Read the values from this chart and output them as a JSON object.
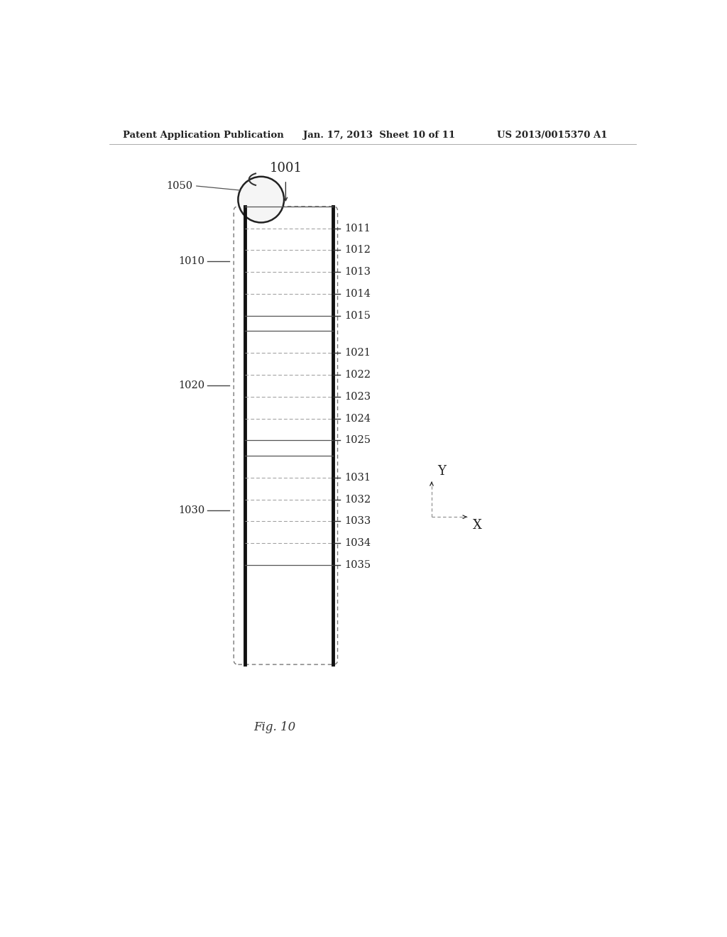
{
  "header_left": "Patent Application Publication",
  "header_mid": "Jan. 17, 2013  Sheet 10 of 11",
  "header_right": "US 2013/0015370 A1",
  "fig_label": "Fig. 10",
  "label_1001": "1001",
  "label_1050": "1050",
  "label_1010": "1010",
  "label_1020": "1020",
  "label_1030": "1030",
  "row_labels": [
    "1011",
    "1012",
    "1013",
    "1014",
    "1015",
    "1021",
    "1022",
    "1023",
    "1024",
    "1025",
    "1031",
    "1032",
    "1033",
    "1034",
    "1035"
  ],
  "bg_color": "#ffffff",
  "font_size_header": 9.5,
  "font_size_labels": 10.5,
  "font_size_fig": 12
}
